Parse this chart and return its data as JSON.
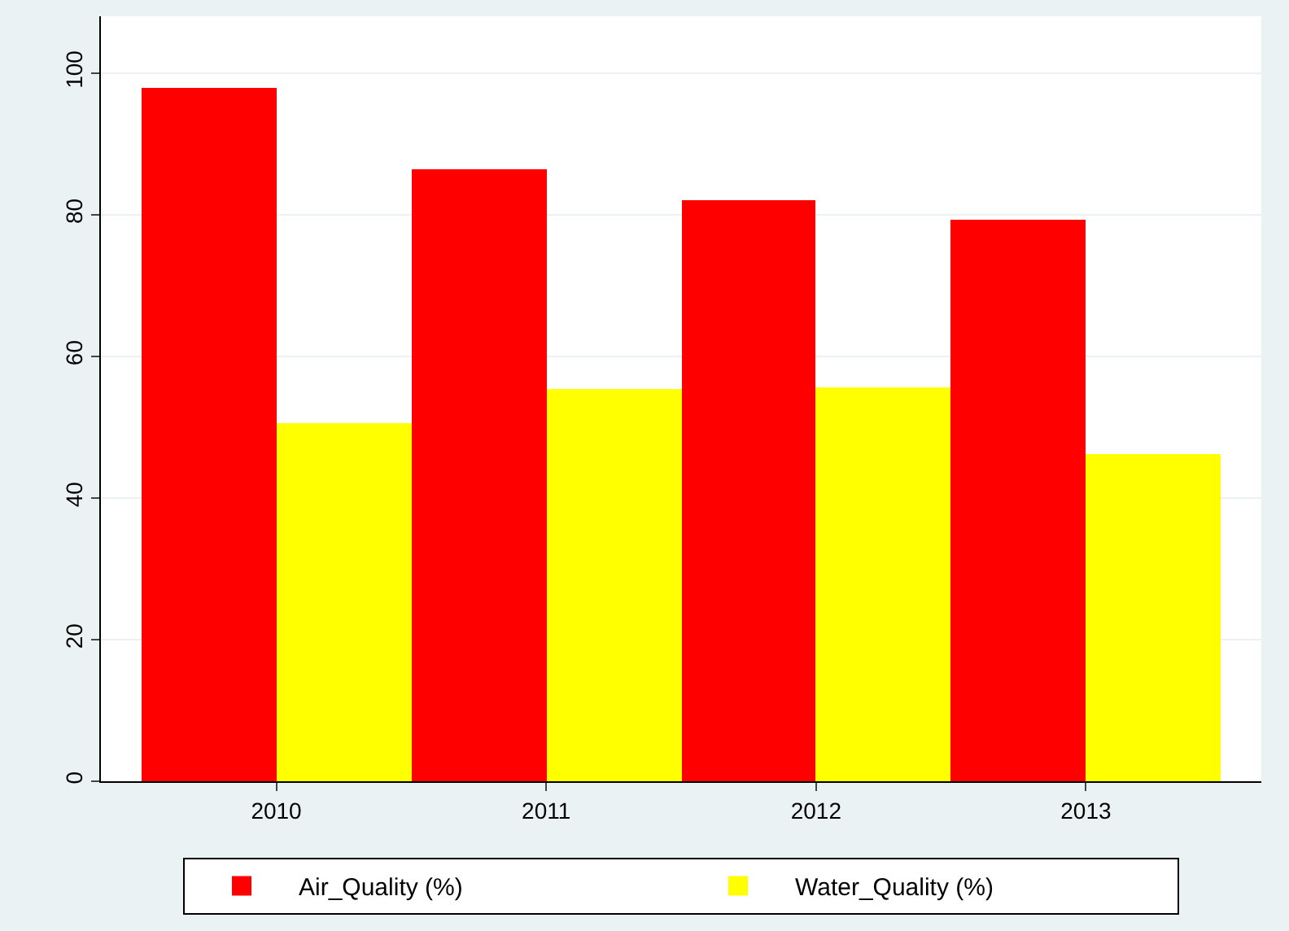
{
  "chart_data": {
    "type": "bar",
    "categories": [
      "2010",
      "2011",
      "2012",
      "2013"
    ],
    "series": [
      {
        "name": "Air_Quality (%)",
        "color": "#ff0000",
        "values": [
          98,
          86.5,
          82,
          79.3
        ]
      },
      {
        "name": "Water_Quality (%)",
        "color": "#ffff00",
        "values": [
          50.5,
          55.3,
          55.7,
          46.2
        ]
      }
    ],
    "ylim": [
      0,
      108
    ],
    "yticks": [
      0,
      20,
      40,
      60,
      80,
      100
    ],
    "grid": "y",
    "legend": "bottom"
  }
}
